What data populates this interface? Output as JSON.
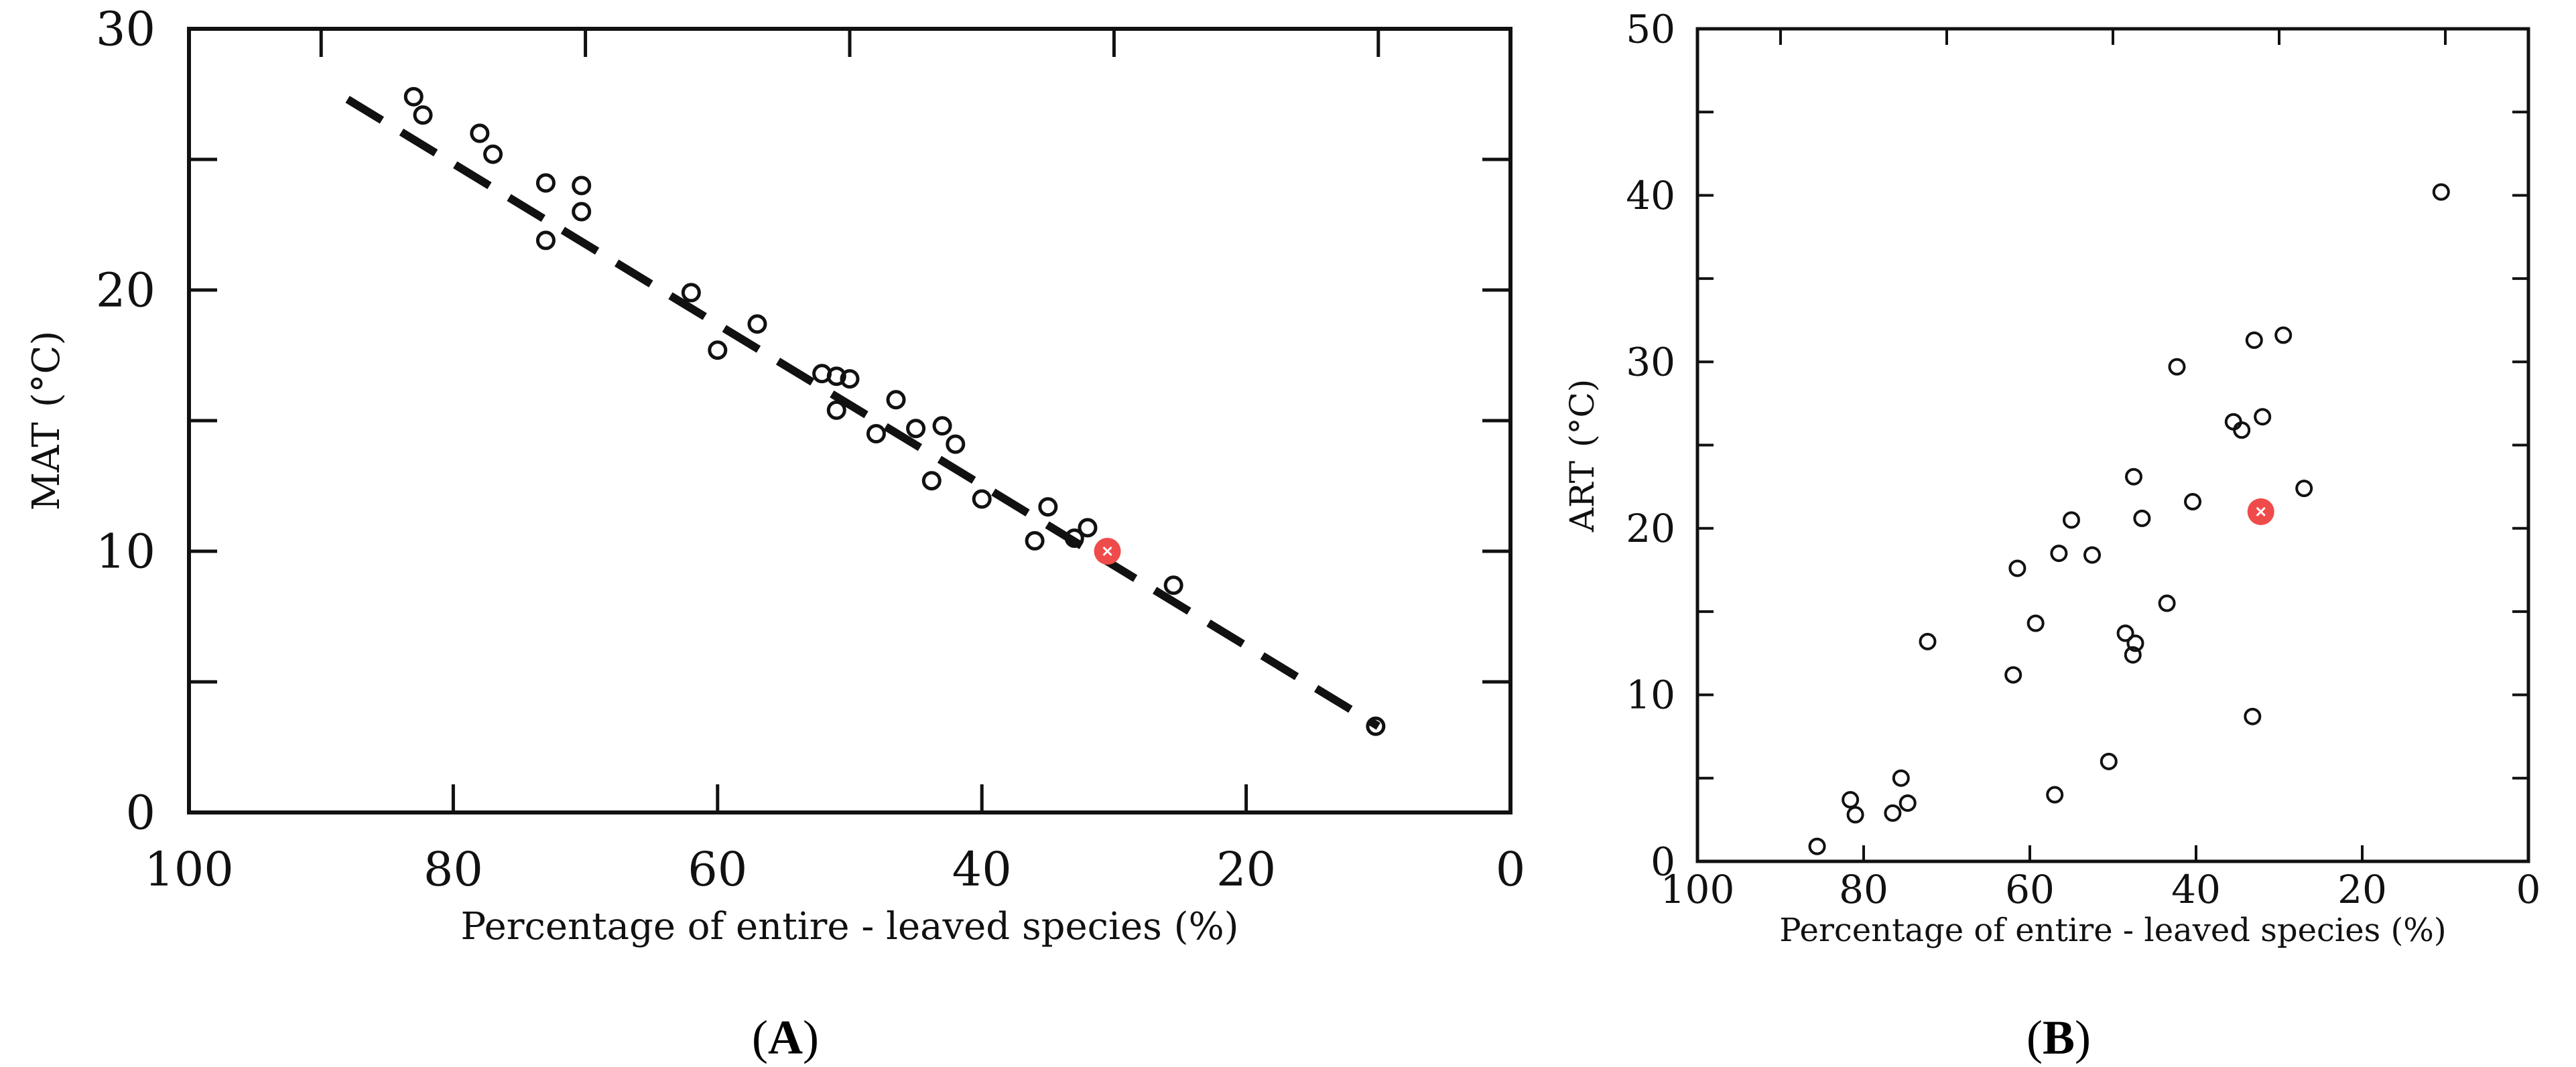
{
  "panel_labels": {
    "a_open": "(",
    "a_letter": "A",
    "a_close": ")",
    "b_open": "(",
    "b_letter": "B",
    "b_close": ")"
  },
  "colors": {
    "frame": "#111111",
    "marker": "#111111",
    "highlight": "#f04b4b",
    "highlight_cross": "#ffffff"
  },
  "chart_data": [
    {
      "type": "scatter",
      "panel": "A",
      "title": "",
      "xlabel": "Percentage of entire - leaved species (%)",
      "ylabel": "MAT (°C)",
      "ylabel_parts": {
        "main": "MAT",
        "unit": "(°C)"
      },
      "xlim": [
        100,
        0
      ],
      "ylim": [
        0,
        30
      ],
      "x_ticks": [
        100,
        80,
        60,
        40,
        20,
        0
      ],
      "x_tick_labels": [
        "100",
        "80",
        "60",
        "40",
        "20",
        "0"
      ],
      "x_minor_ticks": [
        90,
        70,
        50,
        30,
        10
      ],
      "y_ticks": [
        0,
        10,
        20,
        30
      ],
      "y_tick_labels": [
        "0",
        "10",
        "20",
        "30"
      ],
      "y_minor_ticks": [
        5,
        15,
        25
      ],
      "grid": false,
      "points": [
        {
          "x": 83,
          "y": 27.4
        },
        {
          "x": 82.3,
          "y": 26.7
        },
        {
          "x": 78,
          "y": 26
        },
        {
          "x": 77,
          "y": 25.2
        },
        {
          "x": 73,
          "y": 24.1
        },
        {
          "x": 70.3,
          "y": 24
        },
        {
          "x": 70.3,
          "y": 23
        },
        {
          "x": 73,
          "y": 21.9
        },
        {
          "x": 62,
          "y": 19.9
        },
        {
          "x": 57,
          "y": 18.7
        },
        {
          "x": 60,
          "y": 17.7
        },
        {
          "x": 52.1,
          "y": 16.8
        },
        {
          "x": 51,
          "y": 16.7
        },
        {
          "x": 50,
          "y": 16.6
        },
        {
          "x": 46.5,
          "y": 15.8
        },
        {
          "x": 51,
          "y": 15.4
        },
        {
          "x": 43,
          "y": 14.8
        },
        {
          "x": 45,
          "y": 14.7
        },
        {
          "x": 48,
          "y": 14.5
        },
        {
          "x": 42,
          "y": 14.1
        },
        {
          "x": 43.8,
          "y": 12.7
        },
        {
          "x": 40,
          "y": 12
        },
        {
          "x": 35,
          "y": 11.7
        },
        {
          "x": 32,
          "y": 10.9
        },
        {
          "x": 33,
          "y": 10.5
        },
        {
          "x": 36,
          "y": 10.4
        },
        {
          "x": 25.5,
          "y": 8.7
        },
        {
          "x": 10.2,
          "y": 3.3
        }
      ],
      "highlight": {
        "x": 30.5,
        "y": 10
      },
      "fit_line": {
        "x": [
          88,
          10
        ],
        "y": [
          27.3,
          3.3
        ],
        "style": "dashed"
      }
    },
    {
      "type": "scatter",
      "panel": "B",
      "title": "",
      "xlabel": "Percentage of entire - leaved species (%)",
      "ylabel": "ART (°C)",
      "ylabel_parts": {
        "main": "ART",
        "unit": "(°C)"
      },
      "xlim": [
        100,
        0
      ],
      "ylim": [
        0,
        50
      ],
      "x_ticks": [
        100,
        80,
        60,
        40,
        20,
        0
      ],
      "x_tick_labels": [
        "100",
        "80",
        "60",
        "40",
        "20",
        "0"
      ],
      "x_minor_ticks": [
        90,
        70,
        50,
        30,
        10
      ],
      "y_ticks": [
        0,
        10,
        20,
        30,
        40,
        50
      ],
      "y_tick_labels": [
        "0",
        "10",
        "20",
        "30",
        "40",
        "50"
      ],
      "y_minor_ticks": [
        5,
        15,
        25,
        35,
        45
      ],
      "grid": false,
      "points": [
        {
          "x": 10.5,
          "y": 40.2
        },
        {
          "x": 29.5,
          "y": 31.6
        },
        {
          "x": 33,
          "y": 31.3
        },
        {
          "x": 42.3,
          "y": 29.7
        },
        {
          "x": 32,
          "y": 26.7
        },
        {
          "x": 35.5,
          "y": 26.4
        },
        {
          "x": 34.5,
          "y": 25.9
        },
        {
          "x": 47.5,
          "y": 23.1
        },
        {
          "x": 27,
          "y": 22.4
        },
        {
          "x": 40.4,
          "y": 21.6
        },
        {
          "x": 55,
          "y": 20.5
        },
        {
          "x": 46.5,
          "y": 20.6
        },
        {
          "x": 56.5,
          "y": 18.5
        },
        {
          "x": 52.5,
          "y": 18.4
        },
        {
          "x": 61.5,
          "y": 17.6
        },
        {
          "x": 59.3,
          "y": 14.3
        },
        {
          "x": 48.5,
          "y": 13.7
        },
        {
          "x": 47.3,
          "y": 13.1
        },
        {
          "x": 72.3,
          "y": 13.2
        },
        {
          "x": 43.5,
          "y": 15.5
        },
        {
          "x": 47.6,
          "y": 12.4
        },
        {
          "x": 62,
          "y": 11.2
        },
        {
          "x": 33.2,
          "y": 8.7
        },
        {
          "x": 50.5,
          "y": 6
        },
        {
          "x": 75.5,
          "y": 5
        },
        {
          "x": 57,
          "y": 4
        },
        {
          "x": 81.6,
          "y": 3.7
        },
        {
          "x": 74.7,
          "y": 3.5
        },
        {
          "x": 76.5,
          "y": 2.9
        },
        {
          "x": 81,
          "y": 2.8
        },
        {
          "x": 85.6,
          "y": 0.9
        }
      ],
      "highlight": {
        "x": 32.2,
        "y": 21
      }
    }
  ]
}
